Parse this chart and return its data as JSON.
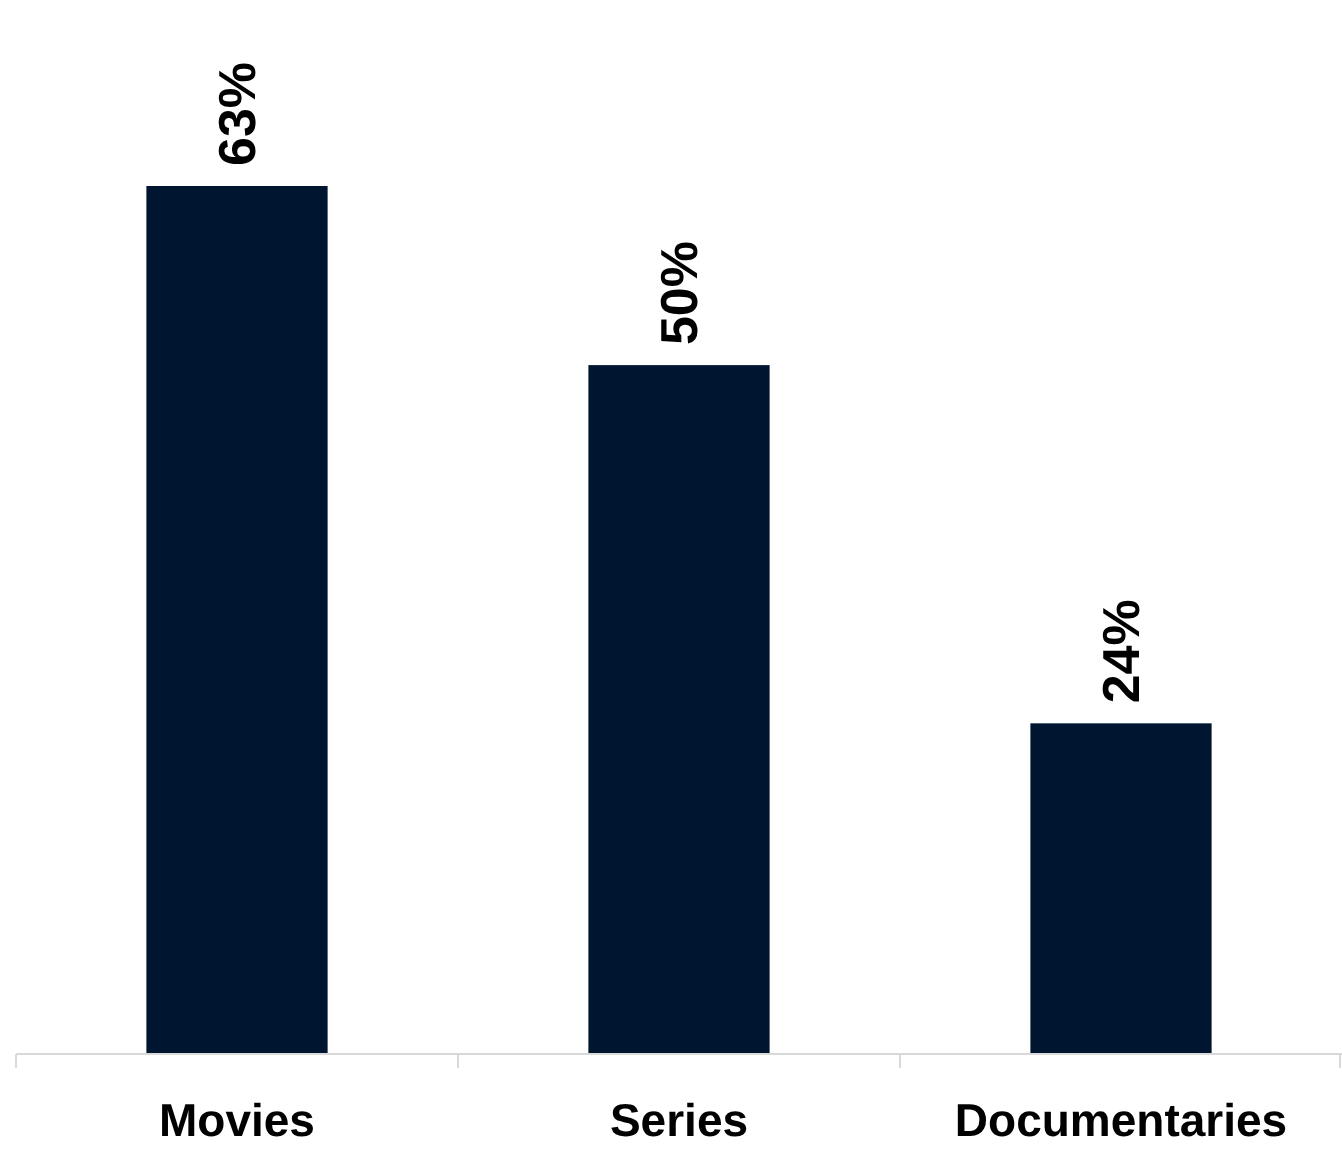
{
  "chart_data": {
    "type": "bar",
    "categories": [
      "Movies",
      "Series",
      "Documentaries"
    ],
    "values": [
      63,
      50,
      24
    ],
    "color": "#00152f",
    "value_labels": [
      "63%",
      "50%",
      "24%"
    ]
  }
}
